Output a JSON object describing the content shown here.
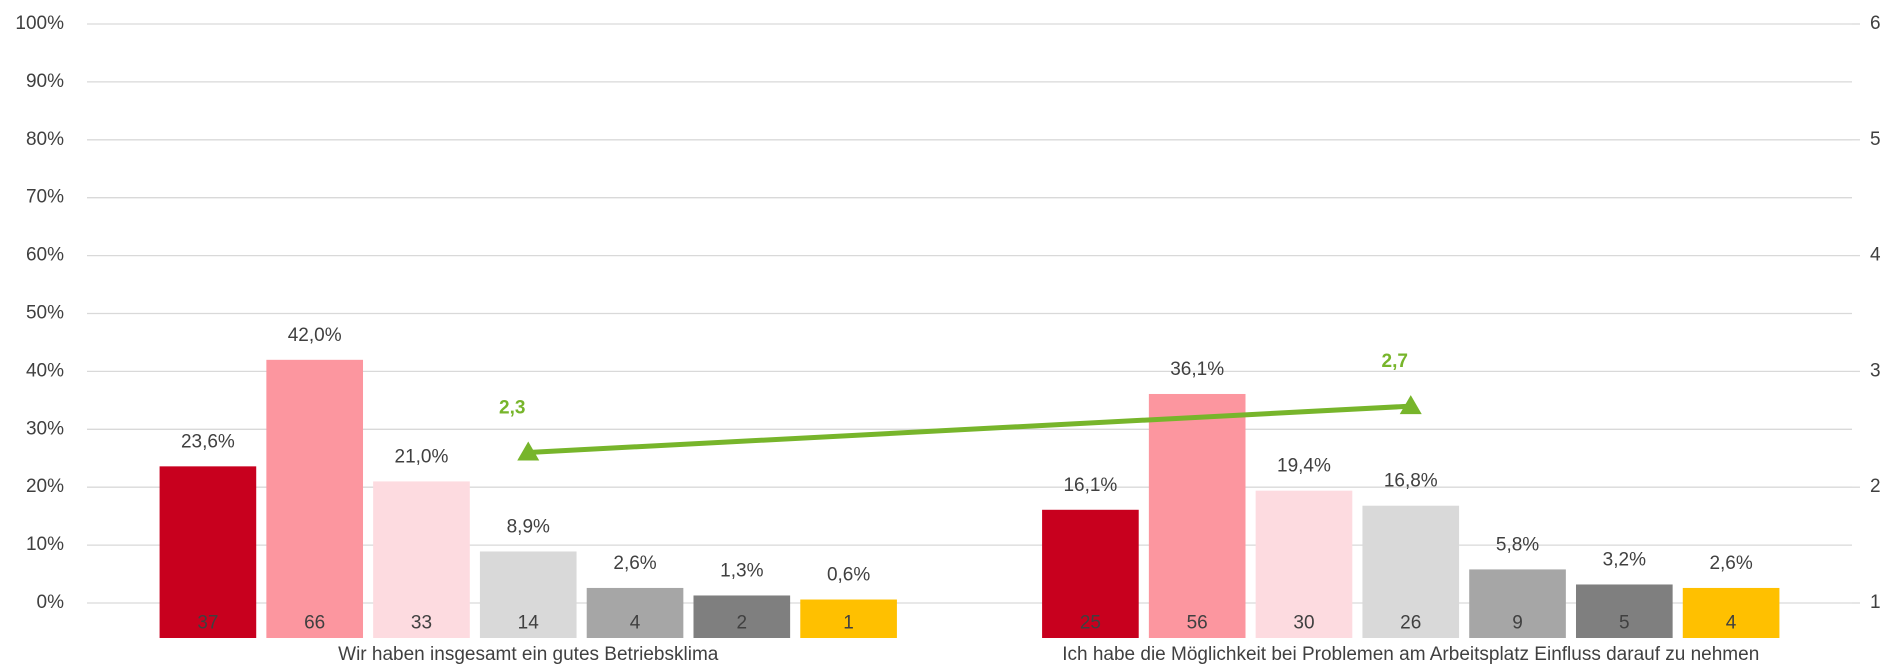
{
  "chart_data": {
    "type": "bar",
    "categories": [
      "Wir haben insgesamt ein gutes Betriebsklima",
      "Ich habe die Möglichkeit bei Problemen am Arbeitsplatz Einfluss darauf zu nehmen"
    ],
    "series": [
      {
        "color": "#c8001e",
        "values": [
          23.6,
          16.1
        ],
        "value_labels": [
          "23,6%",
          "16,1%"
        ],
        "counts": [
          37,
          25
        ]
      },
      {
        "color": "#fc969f",
        "values": [
          42.0,
          36.1
        ],
        "value_labels": [
          "42,0%",
          "36,1%"
        ],
        "counts": [
          66,
          56
        ]
      },
      {
        "color": "#fddbe0",
        "values": [
          21.0,
          19.4
        ],
        "value_labels": [
          "21,0%",
          "19,4%"
        ],
        "counts": [
          33,
          30
        ]
      },
      {
        "color": "#d9d9d9",
        "values": [
          8.9,
          16.8
        ],
        "value_labels": [
          "8,9%",
          "16,8%"
        ],
        "counts": [
          14,
          26
        ]
      },
      {
        "color": "#a6a6a6",
        "values": [
          2.6,
          5.8
        ],
        "value_labels": [
          "2,6%",
          "5,8%"
        ],
        "counts": [
          4,
          9
        ]
      },
      {
        "color": "#7f7f7f",
        "values": [
          1.3,
          3.2
        ],
        "value_labels": [
          "1,3%",
          "3,2%"
        ],
        "counts": [
          2,
          5
        ]
      },
      {
        "color": "#ffc000",
        "values": [
          0.6,
          2.6
        ],
        "value_labels": [
          "0,6%",
          "2,6%"
        ],
        "counts": [
          1,
          4
        ]
      },
      {
        "type": "line",
        "axis": "y2",
        "color": "#77b52b",
        "values": [
          2.3,
          2.7
        ],
        "value_labels": [
          "2,3",
          "2,7"
        ]
      }
    ],
    "ylim": [
      0,
      100
    ],
    "yticks": [
      {
        "value": 0,
        "label": "0%"
      },
      {
        "value": 10,
        "label": "10%"
      },
      {
        "value": 20,
        "label": "20%"
      },
      {
        "value": 30,
        "label": "30%"
      },
      {
        "value": 40,
        "label": "40%"
      },
      {
        "value": 50,
        "label": "50%"
      },
      {
        "value": 60,
        "label": "60%"
      },
      {
        "value": 70,
        "label": "70%"
      },
      {
        "value": 80,
        "label": "80%"
      },
      {
        "value": 90,
        "label": "90%"
      },
      {
        "value": 100,
        "label": "100%"
      }
    ],
    "y2lim": [
      1,
      6
    ],
    "y2ticks": [
      1,
      2,
      3,
      4,
      5,
      6
    ],
    "grid": true
  }
}
